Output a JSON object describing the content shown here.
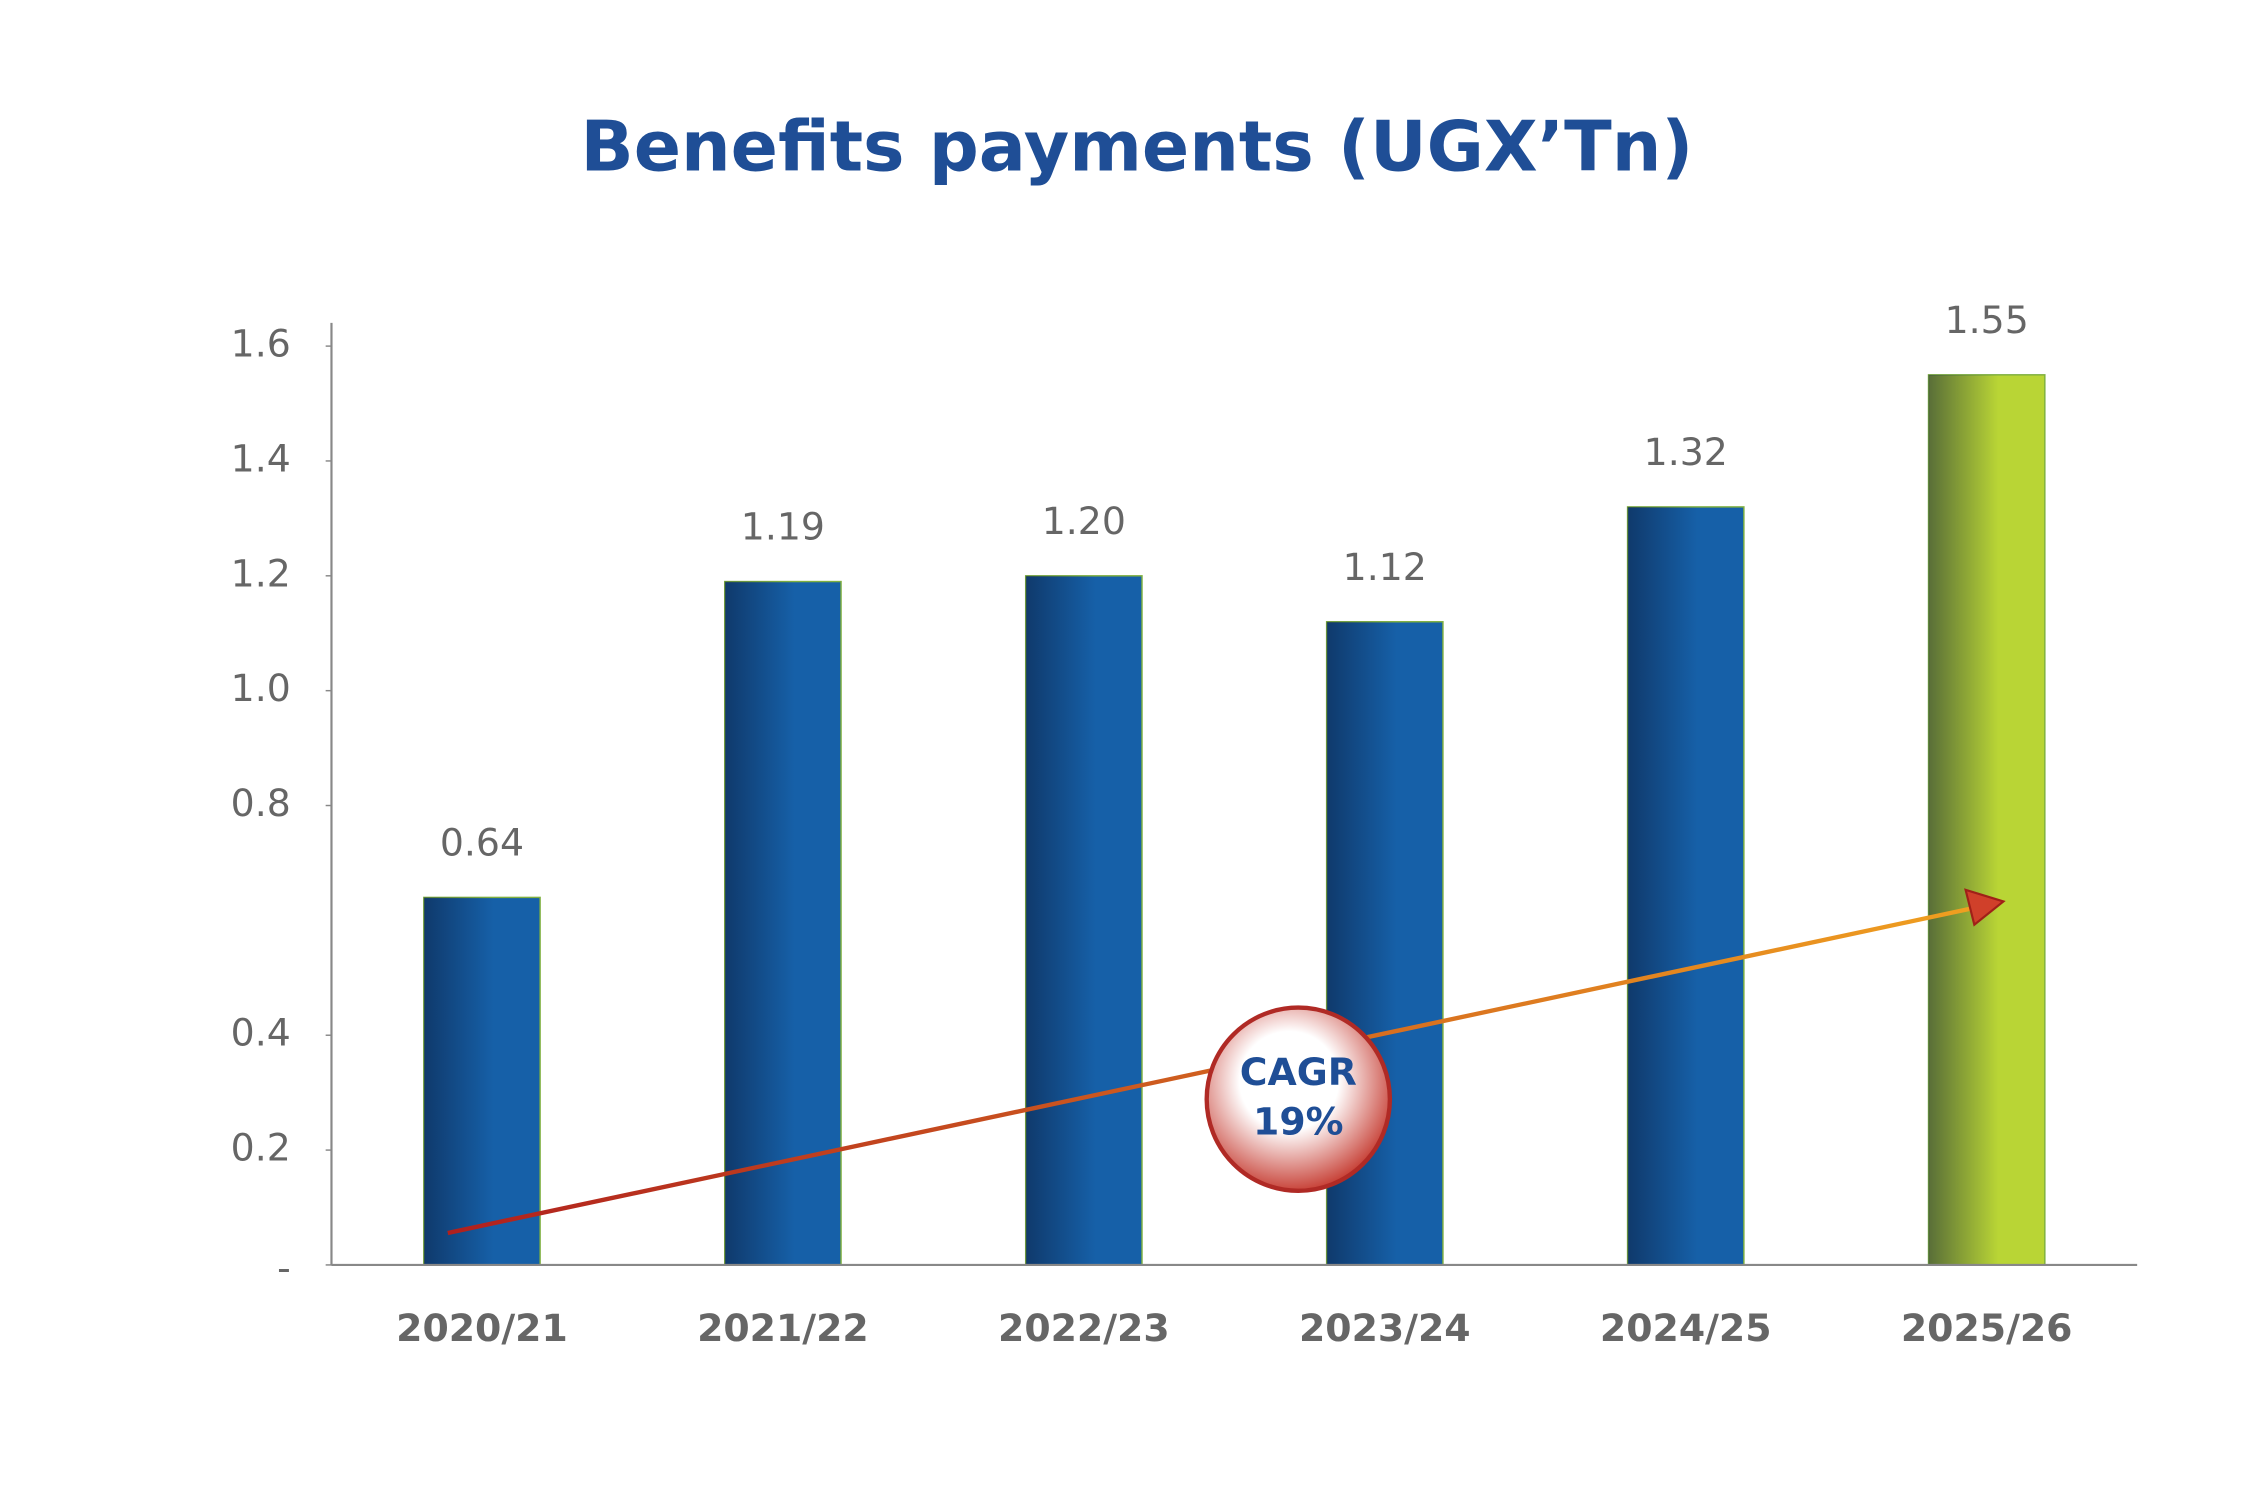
{
  "chart_data": {
    "type": "bar",
    "title": "Benefits payments (UGX’Tn)",
    "categories": [
      "2020/21",
      "2021/22",
      "2022/23",
      "2023/24",
      "2024/25",
      "2025/26"
    ],
    "values": [
      0.64,
      1.19,
      1.2,
      1.12,
      1.32,
      1.55
    ],
    "value_labels": [
      "0.64",
      "1.19",
      "1.20",
      "1.12",
      "1.32",
      "1.55"
    ],
    "colors": [
      "#1660a8",
      "#1660a8",
      "#1660a8",
      "#1660a8",
      "#1660a8",
      "#b9d535"
    ],
    "ylim": [
      0,
      1.6
    ],
    "yticks": [
      {
        "value": 0,
        "label": "-"
      },
      0.2,
      0.4,
      0.8,
      {
        "value": 1,
        "label": "1.0"
      },
      1.2,
      1.4,
      1.6
    ],
    "annotation": [
      "CAGR",
      "19%"
    ]
  }
}
